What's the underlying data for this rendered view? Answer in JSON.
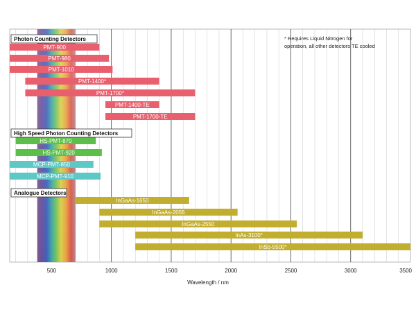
{
  "chart_data": {
    "type": "bar",
    "orientation": "horizontal-range",
    "xlabel": "Wavelength / nm",
    "xlim": [
      150,
      3500
    ],
    "x_ticks": [
      500,
      1000,
      1500,
      2000,
      2500,
      3000,
      3500
    ],
    "grid": true,
    "note": {
      "line1": "* Requires Liquid Nitrogen for",
      "line2": "operation, all other detectors TE cooled"
    },
    "colors": {
      "photon_counting": "#e8606e",
      "hs_green": "#5cbf4a",
      "hs_cyan": "#5ec8c6",
      "analogue": "#c2ae2e"
    },
    "groups": [
      {
        "title": "Photon Counting Detectors",
        "color": "#e8606e",
        "detectors": [
          {
            "name": "PMT-900",
            "start": 150,
            "end": 900
          },
          {
            "name": "PMT-980",
            "start": 150,
            "end": 980
          },
          {
            "name": "PMT-1010",
            "start": 150,
            "end": 1010
          },
          {
            "name": "PMT-1400*",
            "start": 280,
            "end": 1400
          },
          {
            "name": "PMT-1700*",
            "start": 280,
            "end": 1700
          },
          {
            "name": "PMT-1400-TE",
            "start": 950,
            "end": 1400
          },
          {
            "name": "PMT-1700-TE",
            "start": 950,
            "end": 1700
          }
        ]
      },
      {
        "title": "High Speed Photon Counting Detectors",
        "color": "#5cbf4a",
        "detectors": [
          {
            "name": "HS-PMT-870",
            "start": 200,
            "end": 870,
            "color": "#5cbf4a"
          },
          {
            "name": "HS-PMT-920",
            "start": 200,
            "end": 920,
            "color": "#5cbf4a"
          },
          {
            "name": "MCP-PMT-850",
            "start": 150,
            "end": 850,
            "color": "#5ec8c6"
          },
          {
            "name": "MCP-PMT-910",
            "start": 150,
            "end": 910,
            "color": "#5ec8c6"
          }
        ]
      },
      {
        "title": "Analogue Detectors",
        "color": "#c2ae2e",
        "detectors": [
          {
            "name": "InGaAs-1650",
            "start": 700,
            "end": 1650
          },
          {
            "name": "InGaAs-2055",
            "start": 900,
            "end": 2055
          },
          {
            "name": "InGaAs-2550",
            "start": 900,
            "end": 2550
          },
          {
            "name": "InAs-3100*",
            "start": 1200,
            "end": 3100
          },
          {
            "name": "InSb-5500*",
            "start": 1200,
            "end": 3500
          }
        ]
      }
    ]
  }
}
